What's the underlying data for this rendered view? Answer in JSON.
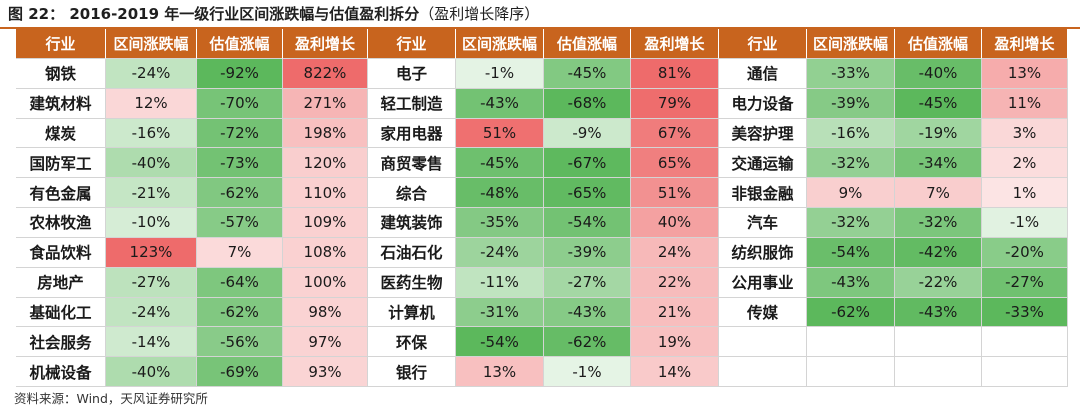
{
  "title": "图 22： 2016-2019 年一级行业区间涨跌幅与估值盈利拆分",
  "title_paren": "（盈利增长降序）",
  "source": "资料来源：Wind，天风证券研究所",
  "colors": {
    "header": "#c8641e",
    "positive": "#ee6b6b",
    "negative": "#5cb85c"
  },
  "headers": [
    "行业",
    "区间涨跌幅",
    "估值涨幅",
    "盈利增长",
    "行业",
    "区间涨跌幅",
    "估值涨幅",
    "盈利增长",
    "行业",
    "区间涨跌幅",
    "估值涨幅",
    "盈利增长"
  ],
  "groups": [
    [
      [
        "钢铁",
        "-24%",
        "-92%",
        "822%"
      ],
      [
        "建筑材料",
        "12%",
        "-70%",
        "271%"
      ],
      [
        "煤炭",
        "-16%",
        "-72%",
        "198%"
      ],
      [
        "国防军工",
        "-40%",
        "-73%",
        "120%"
      ],
      [
        "有色金属",
        "-21%",
        "-62%",
        "110%"
      ],
      [
        "农林牧渔",
        "-10%",
        "-57%",
        "109%"
      ],
      [
        "食品饮料",
        "123%",
        "7%",
        "108%"
      ],
      [
        "房地产",
        "-27%",
        "-64%",
        "100%"
      ],
      [
        "基础化工",
        "-24%",
        "-62%",
        "98%"
      ],
      [
        "社会服务",
        "-14%",
        "-56%",
        "97%"
      ],
      [
        "机械设备",
        "-40%",
        "-69%",
        "93%"
      ]
    ],
    [
      [
        "电子",
        "-1%",
        "-45%",
        "81%"
      ],
      [
        "轻工制造",
        "-43%",
        "-68%",
        "79%"
      ],
      [
        "家用电器",
        "51%",
        "-9%",
        "67%"
      ],
      [
        "商贸零售",
        "-45%",
        "-67%",
        "65%"
      ],
      [
        "综合",
        "-48%",
        "-65%",
        "51%"
      ],
      [
        "建筑装饰",
        "-35%",
        "-54%",
        "40%"
      ],
      [
        "石油石化",
        "-24%",
        "-39%",
        "24%"
      ],
      [
        "医药生物",
        "-11%",
        "-27%",
        "22%"
      ],
      [
        "计算机",
        "-31%",
        "-43%",
        "21%"
      ],
      [
        "环保",
        "-54%",
        "-62%",
        "19%"
      ],
      [
        "银行",
        "13%",
        "-1%",
        "14%"
      ]
    ],
    [
      [
        "通信",
        "-33%",
        "-40%",
        "13%"
      ],
      [
        "电力设备",
        "-39%",
        "-45%",
        "11%"
      ],
      [
        "美容护理",
        "-16%",
        "-19%",
        "3%"
      ],
      [
        "交通运输",
        "-32%",
        "-34%",
        "2%"
      ],
      [
        "非银金融",
        "9%",
        "7%",
        "1%"
      ],
      [
        "汽车",
        "-32%",
        "-32%",
        "-1%"
      ],
      [
        "纺织服饰",
        "-54%",
        "-42%",
        "-20%"
      ],
      [
        "公用事业",
        "-43%",
        "-22%",
        "-27%"
      ],
      [
        "传媒",
        "-62%",
        "-43%",
        "-33%"
      ]
    ]
  ]
}
